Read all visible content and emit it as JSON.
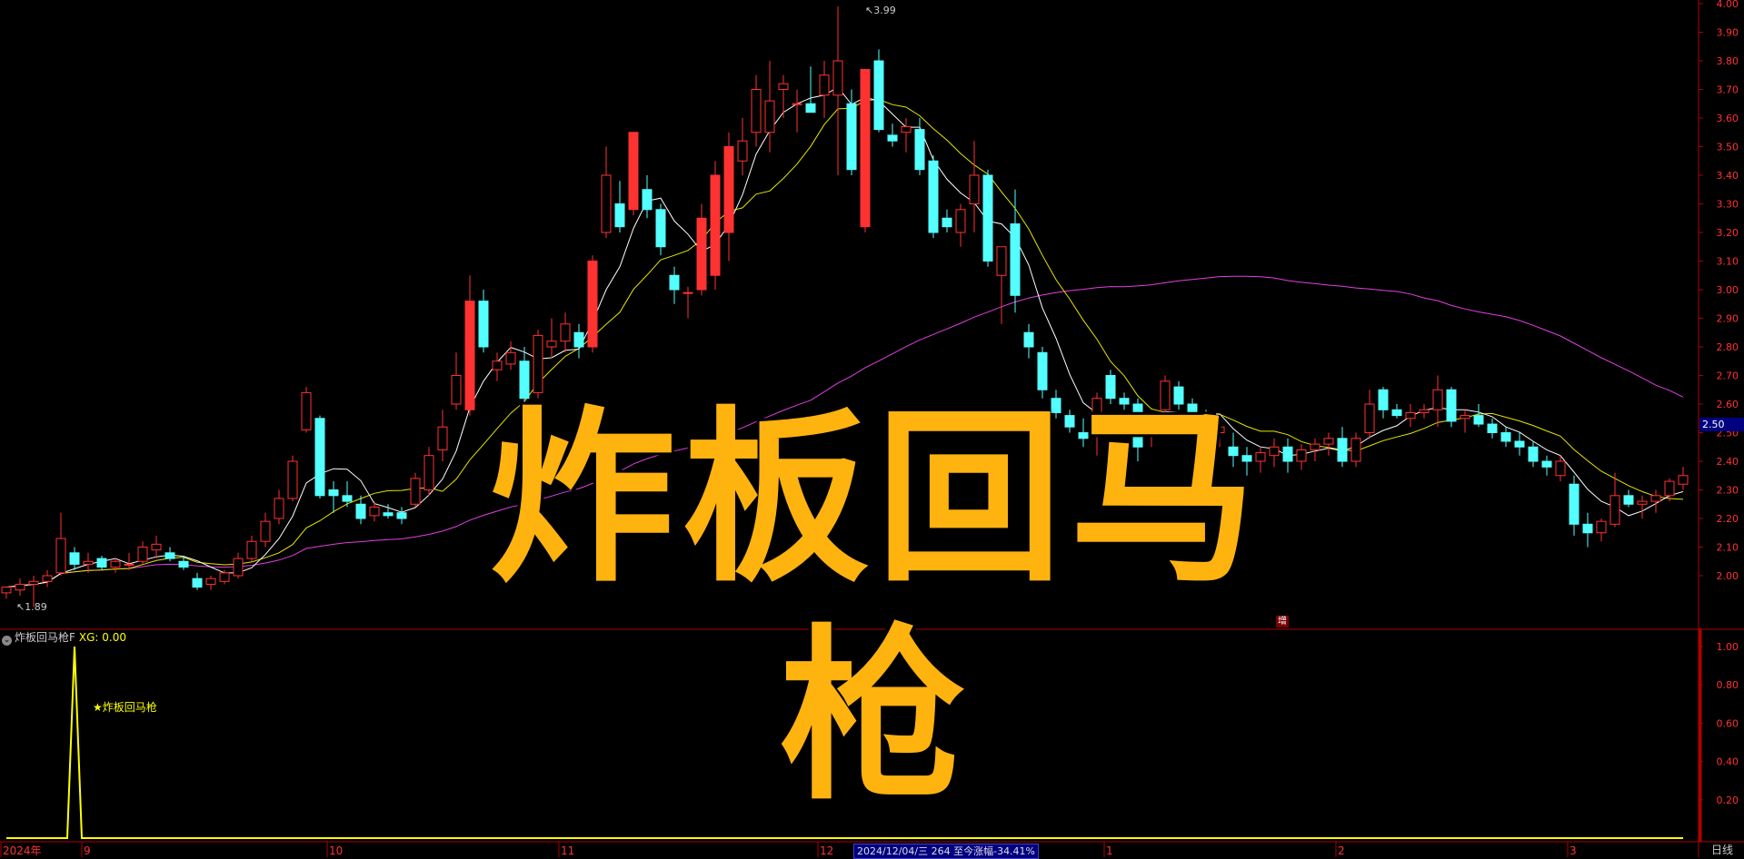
{
  "chart_data": {
    "type": "candlestick",
    "price_axis": {
      "ylim": [
        1.8,
        4.0
      ],
      "ticks": [
        "4.00",
        "3.90",
        "3.80",
        "3.70",
        "3.60",
        "3.50",
        "3.40",
        "3.30",
        "3.20",
        "3.10",
        "3.00",
        "2.90",
        "2.80",
        "2.70",
        "2.60",
        "2.50",
        "2.40",
        "2.30",
        "2.20",
        "2.10",
        "2.00"
      ]
    },
    "x_ticks": [
      {
        "label": "2024年",
        "index": 0
      },
      {
        "label": "9",
        "index": 6
      },
      {
        "label": "10",
        "index": 24
      },
      {
        "label": "11",
        "index": 41
      },
      {
        "label": "12",
        "index": 60
      },
      {
        "label": "1",
        "index": 81
      },
      {
        "label": "2",
        "index": 98
      },
      {
        "label": "3",
        "index": 115
      }
    ],
    "candles_ohlc": [
      [
        1.94,
        1.96,
        1.92,
        1.96
      ],
      [
        1.95,
        1.99,
        1.93,
        1.97
      ],
      [
        1.97,
        2.0,
        1.89,
        1.98
      ],
      [
        1.98,
        2.02,
        1.96,
        2.0
      ],
      [
        2.01,
        2.22,
        2.0,
        2.13
      ],
      [
        2.08,
        2.1,
        2.02,
        2.04
      ],
      [
        2.04,
        2.08,
        2.01,
        2.05
      ],
      [
        2.06,
        2.07,
        2.02,
        2.03
      ],
      [
        2.03,
        2.06,
        2.01,
        2.05
      ],
      [
        2.04,
        2.08,
        2.02,
        2.04
      ],
      [
        2.05,
        2.12,
        2.04,
        2.1
      ],
      [
        2.09,
        2.14,
        2.06,
        2.11
      ],
      [
        2.08,
        2.1,
        2.05,
        2.06
      ],
      [
        2.05,
        2.07,
        2.02,
        2.03
      ],
      [
        1.99,
        2.01,
        1.95,
        1.96
      ],
      [
        1.97,
        2.0,
        1.95,
        1.99
      ],
      [
        1.98,
        2.02,
        1.97,
        2.01
      ],
      [
        2.0,
        2.08,
        1.99,
        2.06
      ],
      [
        2.06,
        2.14,
        2.05,
        2.12
      ],
      [
        2.12,
        2.22,
        2.1,
        2.19
      ],
      [
        2.2,
        2.3,
        2.18,
        2.27
      ],
      [
        2.27,
        2.42,
        2.26,
        2.4
      ],
      [
        2.51,
        2.66,
        2.5,
        2.64
      ],
      [
        2.55,
        2.56,
        2.27,
        2.28
      ],
      [
        2.3,
        2.33,
        2.22,
        2.28
      ],
      [
        2.28,
        2.33,
        2.24,
        2.26
      ],
      [
        2.25,
        2.28,
        2.18,
        2.2
      ],
      [
        2.21,
        2.26,
        2.19,
        2.24
      ],
      [
        2.22,
        2.25,
        2.2,
        2.21
      ],
      [
        2.22,
        2.24,
        2.18,
        2.2
      ],
      [
        2.25,
        2.36,
        2.24,
        2.34
      ],
      [
        2.3,
        2.45,
        2.28,
        2.42
      ],
      [
        2.44,
        2.58,
        2.4,
        2.52
      ],
      [
        2.6,
        2.78,
        2.58,
        2.7
      ],
      [
        2.58,
        3.05,
        2.56,
        2.96
      ],
      [
        2.96,
        3.0,
        2.78,
        2.8
      ],
      [
        2.72,
        2.78,
        2.68,
        2.75
      ],
      [
        2.74,
        2.82,
        2.72,
        2.78
      ],
      [
        2.75,
        2.8,
        2.6,
        2.62
      ],
      [
        2.64,
        2.86,
        2.62,
        2.84
      ],
      [
        2.8,
        2.9,
        2.76,
        2.82
      ],
      [
        2.82,
        2.92,
        2.78,
        2.88
      ],
      [
        2.85,
        2.88,
        2.76,
        2.8
      ],
      [
        2.8,
        3.12,
        2.78,
        3.1
      ],
      [
        3.2,
        3.5,
        3.18,
        3.4
      ],
      [
        3.3,
        3.38,
        3.2,
        3.22
      ],
      [
        3.28,
        3.55,
        3.26,
        3.55
      ],
      [
        3.35,
        3.4,
        3.25,
        3.28
      ],
      [
        3.28,
        3.3,
        3.12,
        3.15
      ],
      [
        3.05,
        3.08,
        2.95,
        3.0
      ],
      [
        2.99,
        3.01,
        2.9,
        2.99
      ],
      [
        3.0,
        3.3,
        2.98,
        3.25
      ],
      [
        3.05,
        3.45,
        3.0,
        3.4
      ],
      [
        3.2,
        3.55,
        3.1,
        3.5
      ],
      [
        3.45,
        3.6,
        3.4,
        3.52
      ],
      [
        3.55,
        3.75,
        3.5,
        3.7
      ],
      [
        3.55,
        3.8,
        3.48,
        3.66
      ],
      [
        3.7,
        3.75,
        3.6,
        3.72
      ],
      [
        3.65,
        3.7,
        3.55,
        3.65
      ],
      [
        3.65,
        3.78,
        3.62,
        3.62
      ],
      [
        3.68,
        3.8,
        3.6,
        3.75
      ],
      [
        3.68,
        3.99,
        3.4,
        3.8
      ],
      [
        3.65,
        3.7,
        3.4,
        3.42
      ],
      [
        3.22,
        3.77,
        3.2,
        3.77
      ],
      [
        3.8,
        3.84,
        3.55,
        3.56
      ],
      [
        3.54,
        3.58,
        3.5,
        3.52
      ],
      [
        3.55,
        3.6,
        3.48,
        3.57
      ],
      [
        3.56,
        3.6,
        3.4,
        3.42
      ],
      [
        3.45,
        3.47,
        3.18,
        3.2
      ],
      [
        3.25,
        3.28,
        3.2,
        3.22
      ],
      [
        3.2,
        3.3,
        3.15,
        3.28
      ],
      [
        3.3,
        3.52,
        3.2,
        3.4
      ],
      [
        3.4,
        3.42,
        3.08,
        3.1
      ],
      [
        3.05,
        3.15,
        2.88,
        3.15
      ],
      [
        3.23,
        3.35,
        2.92,
        2.98
      ],
      [
        2.85,
        2.88,
        2.76,
        2.8
      ],
      [
        2.78,
        2.8,
        2.62,
        2.65
      ],
      [
        2.62,
        2.65,
        2.55,
        2.57
      ],
      [
        2.56,
        2.58,
        2.5,
        2.52
      ],
      [
        2.5,
        2.55,
        2.45,
        2.48
      ],
      [
        2.55,
        2.64,
        2.42,
        2.62
      ],
      [
        2.7,
        2.72,
        2.6,
        2.62
      ],
      [
        2.62,
        2.64,
        2.58,
        2.6
      ],
      [
        2.6,
        2.62,
        2.4,
        2.45
      ],
      [
        2.5,
        2.55,
        2.45,
        2.52
      ],
      [
        2.58,
        2.7,
        2.55,
        2.68
      ],
      [
        2.66,
        2.68,
        2.58,
        2.6
      ],
      [
        2.6,
        2.62,
        2.52,
        2.55
      ],
      [
        2.55,
        2.58,
        2.45,
        2.48
      ],
      [
        2.5,
        2.55,
        2.45,
        2.52
      ],
      [
        2.45,
        2.5,
        2.38,
        2.42
      ],
      [
        2.42,
        2.45,
        2.35,
        2.4
      ],
      [
        2.4,
        2.45,
        2.36,
        2.43
      ],
      [
        2.42,
        2.48,
        2.38,
        2.45
      ],
      [
        2.45,
        2.48,
        2.36,
        2.4
      ],
      [
        2.4,
        2.46,
        2.37,
        2.44
      ],
      [
        2.44,
        2.48,
        2.4,
        2.46
      ],
      [
        2.46,
        2.5,
        2.42,
        2.48
      ],
      [
        2.48,
        2.52,
        2.38,
        2.4
      ],
      [
        2.4,
        2.5,
        2.38,
        2.48
      ],
      [
        2.5,
        2.65,
        2.48,
        2.6
      ],
      [
        2.65,
        2.66,
        2.55,
        2.58
      ],
      [
        2.58,
        2.6,
        2.55,
        2.56
      ],
      [
        2.55,
        2.6,
        2.52,
        2.57
      ],
      [
        2.57,
        2.6,
        2.55,
        2.58
      ],
      [
        2.58,
        2.7,
        2.52,
        2.65
      ],
      [
        2.65,
        2.66,
        2.52,
        2.54
      ],
      [
        2.55,
        2.58,
        2.5,
        2.56
      ],
      [
        2.56,
        2.6,
        2.52,
        2.53
      ],
      [
        2.53,
        2.55,
        2.48,
        2.5
      ],
      [
        2.5,
        2.52,
        2.45,
        2.47
      ],
      [
        2.47,
        2.5,
        2.42,
        2.45
      ],
      [
        2.45,
        2.47,
        2.38,
        2.4
      ],
      [
        2.4,
        2.42,
        2.35,
        2.38
      ],
      [
        2.35,
        2.42,
        2.33,
        2.4
      ],
      [
        2.32,
        2.35,
        2.14,
        2.18
      ],
      [
        2.18,
        2.22,
        2.1,
        2.15
      ],
      [
        2.15,
        2.2,
        2.12,
        2.19
      ],
      [
        2.18,
        2.36,
        2.17,
        2.28
      ],
      [
        2.28,
        2.3,
        2.24,
        2.25
      ],
      [
        2.25,
        2.28,
        2.2,
        2.26
      ],
      [
        2.26,
        2.3,
        2.22,
        2.28
      ],
      [
        2.28,
        2.34,
        2.26,
        2.33
      ],
      [
        2.32,
        2.38,
        2.3,
        2.35
      ]
    ],
    "high_label": "3.99",
    "low_label": "1.89",
    "colors": {
      "up": "#FF3232",
      "down": "#54FFFF",
      "ma_short": "#FFFFFF",
      "ma_mid": "#E6E600",
      "ma_long": "#E040E0",
      "grid_axis": "#B00000",
      "signal": "#FFFF00"
    },
    "indicator": {
      "name": "炸板回马枪F",
      "value_text": "XG: 0.00",
      "ylim": [
        0,
        1.1
      ],
      "ticks": [
        "1.00",
        "0.80",
        "0.60",
        "0.40",
        "0.20"
      ],
      "signal_indices": [
        5
      ],
      "signal_label": "★炸板回马枪"
    }
  },
  "overlay_title": "炸板回马枪",
  "current_price_tag": "2.50",
  "status_bar": "2024/12/04/三 264 至今涨幅-34.41%",
  "marker_zeng": "增",
  "period": "日线"
}
